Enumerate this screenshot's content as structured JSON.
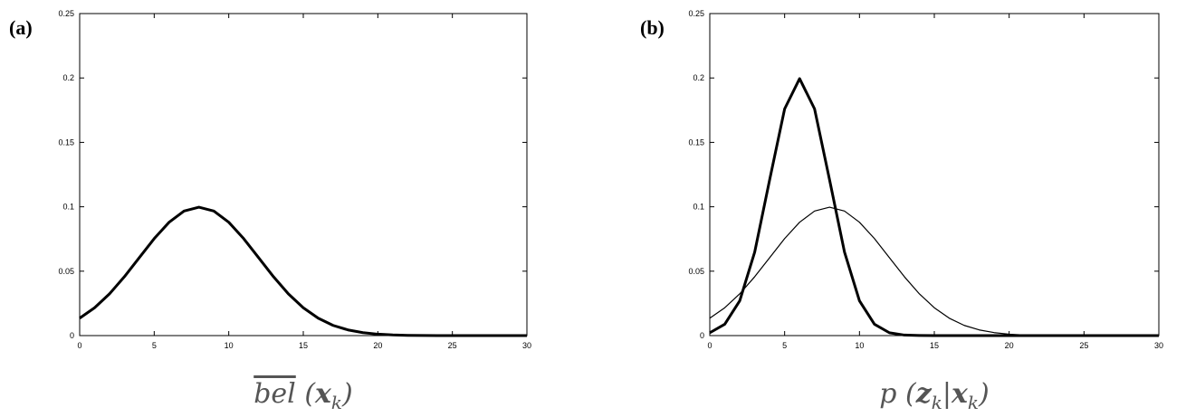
{
  "chart_data": [
    {
      "type": "line",
      "panel_label": "(a)",
      "x_label": [
        "bel",
        " (",
        "x",
        "k",
        ")"
      ],
      "x": [
        0,
        1,
        2,
        3,
        4,
        5,
        6,
        7,
        8,
        9,
        10,
        11,
        12,
        13,
        14,
        15,
        16,
        17,
        18,
        19,
        20,
        21,
        22,
        23,
        24,
        25,
        26,
        27,
        28,
        29,
        30
      ],
      "series": [
        {
          "color": "#000000",
          "width": 3,
          "values": [
            0.0135,
            0.0216,
            0.0324,
            0.0457,
            0.0605,
            0.0753,
            0.088,
            0.0967,
            0.0997,
            0.0967,
            0.088,
            0.0753,
            0.0605,
            0.0457,
            0.0324,
            0.0216,
            0.0135,
            0.0079,
            0.0044,
            0.0023,
            0.0011,
            0.0005,
            0.0002,
            0.0001,
            0,
            0,
            0,
            0,
            0,
            0,
            0
          ]
        }
      ],
      "xlim": [
        0,
        30
      ],
      "ylim": [
        0,
        0.25
      ],
      "xticks": [
        0,
        5,
        10,
        15,
        20,
        25,
        30
      ],
      "yticks": [
        0,
        0.05,
        0.1,
        0.15,
        0.2,
        0.25
      ]
    },
    {
      "type": "line",
      "panel_label": "(b)",
      "x_label": [
        "p (",
        "z",
        "k",
        "|",
        "x",
        "k",
        ")"
      ],
      "x": [
        0,
        1,
        2,
        3,
        4,
        5,
        6,
        7,
        8,
        9,
        10,
        11,
        12,
        13,
        14,
        15,
        16,
        17,
        18,
        19,
        20,
        21,
        22,
        23,
        24,
        25,
        26,
        27,
        28,
        29,
        30
      ],
      "series": [
        {
          "color": "#000000",
          "width": 3,
          "values": [
            0.0022,
            0.0088,
            0.027,
            0.0648,
            0.121,
            0.176,
            0.1995,
            0.176,
            0.121,
            0.0648,
            0.027,
            0.0088,
            0.0022,
            0.0004,
            0.0001,
            0,
            0,
            0,
            0,
            0,
            0,
            0,
            0,
            0,
            0,
            0,
            0,
            0,
            0,
            0,
            0
          ]
        },
        {
          "color": "#000000",
          "width": 1.2,
          "values": [
            0.0135,
            0.0216,
            0.0324,
            0.0457,
            0.0605,
            0.0753,
            0.088,
            0.0967,
            0.0997,
            0.0967,
            0.088,
            0.0753,
            0.0605,
            0.0457,
            0.0324,
            0.0216,
            0.0135,
            0.0079,
            0.0044,
            0.0023,
            0.0011,
            0.0005,
            0.0002,
            0.0001,
            0,
            0,
            0,
            0,
            0,
            0,
            0
          ]
        }
      ],
      "xlim": [
        0,
        30
      ],
      "ylim": [
        0,
        0.25
      ],
      "xticks": [
        0,
        5,
        10,
        15,
        20,
        25,
        30
      ],
      "yticks": [
        0,
        0.05,
        0.1,
        0.15,
        0.2,
        0.25
      ]
    }
  ]
}
